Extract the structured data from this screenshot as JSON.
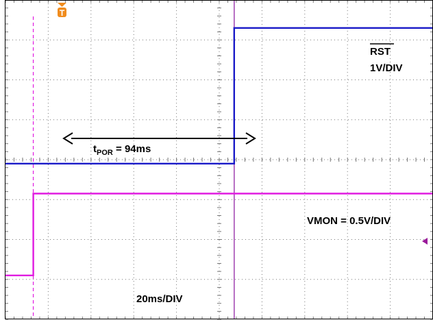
{
  "chart_data": {
    "type": "line",
    "title": "",
    "xlabel": "",
    "ylabel": "",
    "x_unit": "ms",
    "x_range": [
      0,
      200
    ],
    "x_divisions": 10,
    "y_divisions": 8,
    "grid": true,
    "trigger_marker": "T",
    "trigger_time_ms": 13,
    "rst_edge_time_ms": 107,
    "series": [
      {
        "name": "RST",
        "label_overline": "RST",
        "scale_label": "1V/DIV",
        "color": "#1a1ac8",
        "points": [
          [
            0,
            -0.1
          ],
          [
            107,
            -0.1
          ],
          [
            107,
            3.3
          ],
          [
            200,
            3.3
          ]
        ]
      },
      {
        "name": "VMON",
        "scale_label": "VMON = 0.5V/DIV",
        "color": "#e01ae0",
        "points": [
          [
            0,
            -2.9
          ],
          [
            13,
            -2.9
          ],
          [
            13,
            -0.85
          ],
          [
            200,
            -0.85
          ]
        ]
      }
    ],
    "annotations": {
      "tpor_main": "t",
      "tpor_sub": "POR",
      "tpor_value": " = 94ms",
      "timebase": "20ms/DIV"
    },
    "colors": {
      "grid": "#777777",
      "trigger": "#f08c1e",
      "frame": "#000000"
    }
  }
}
